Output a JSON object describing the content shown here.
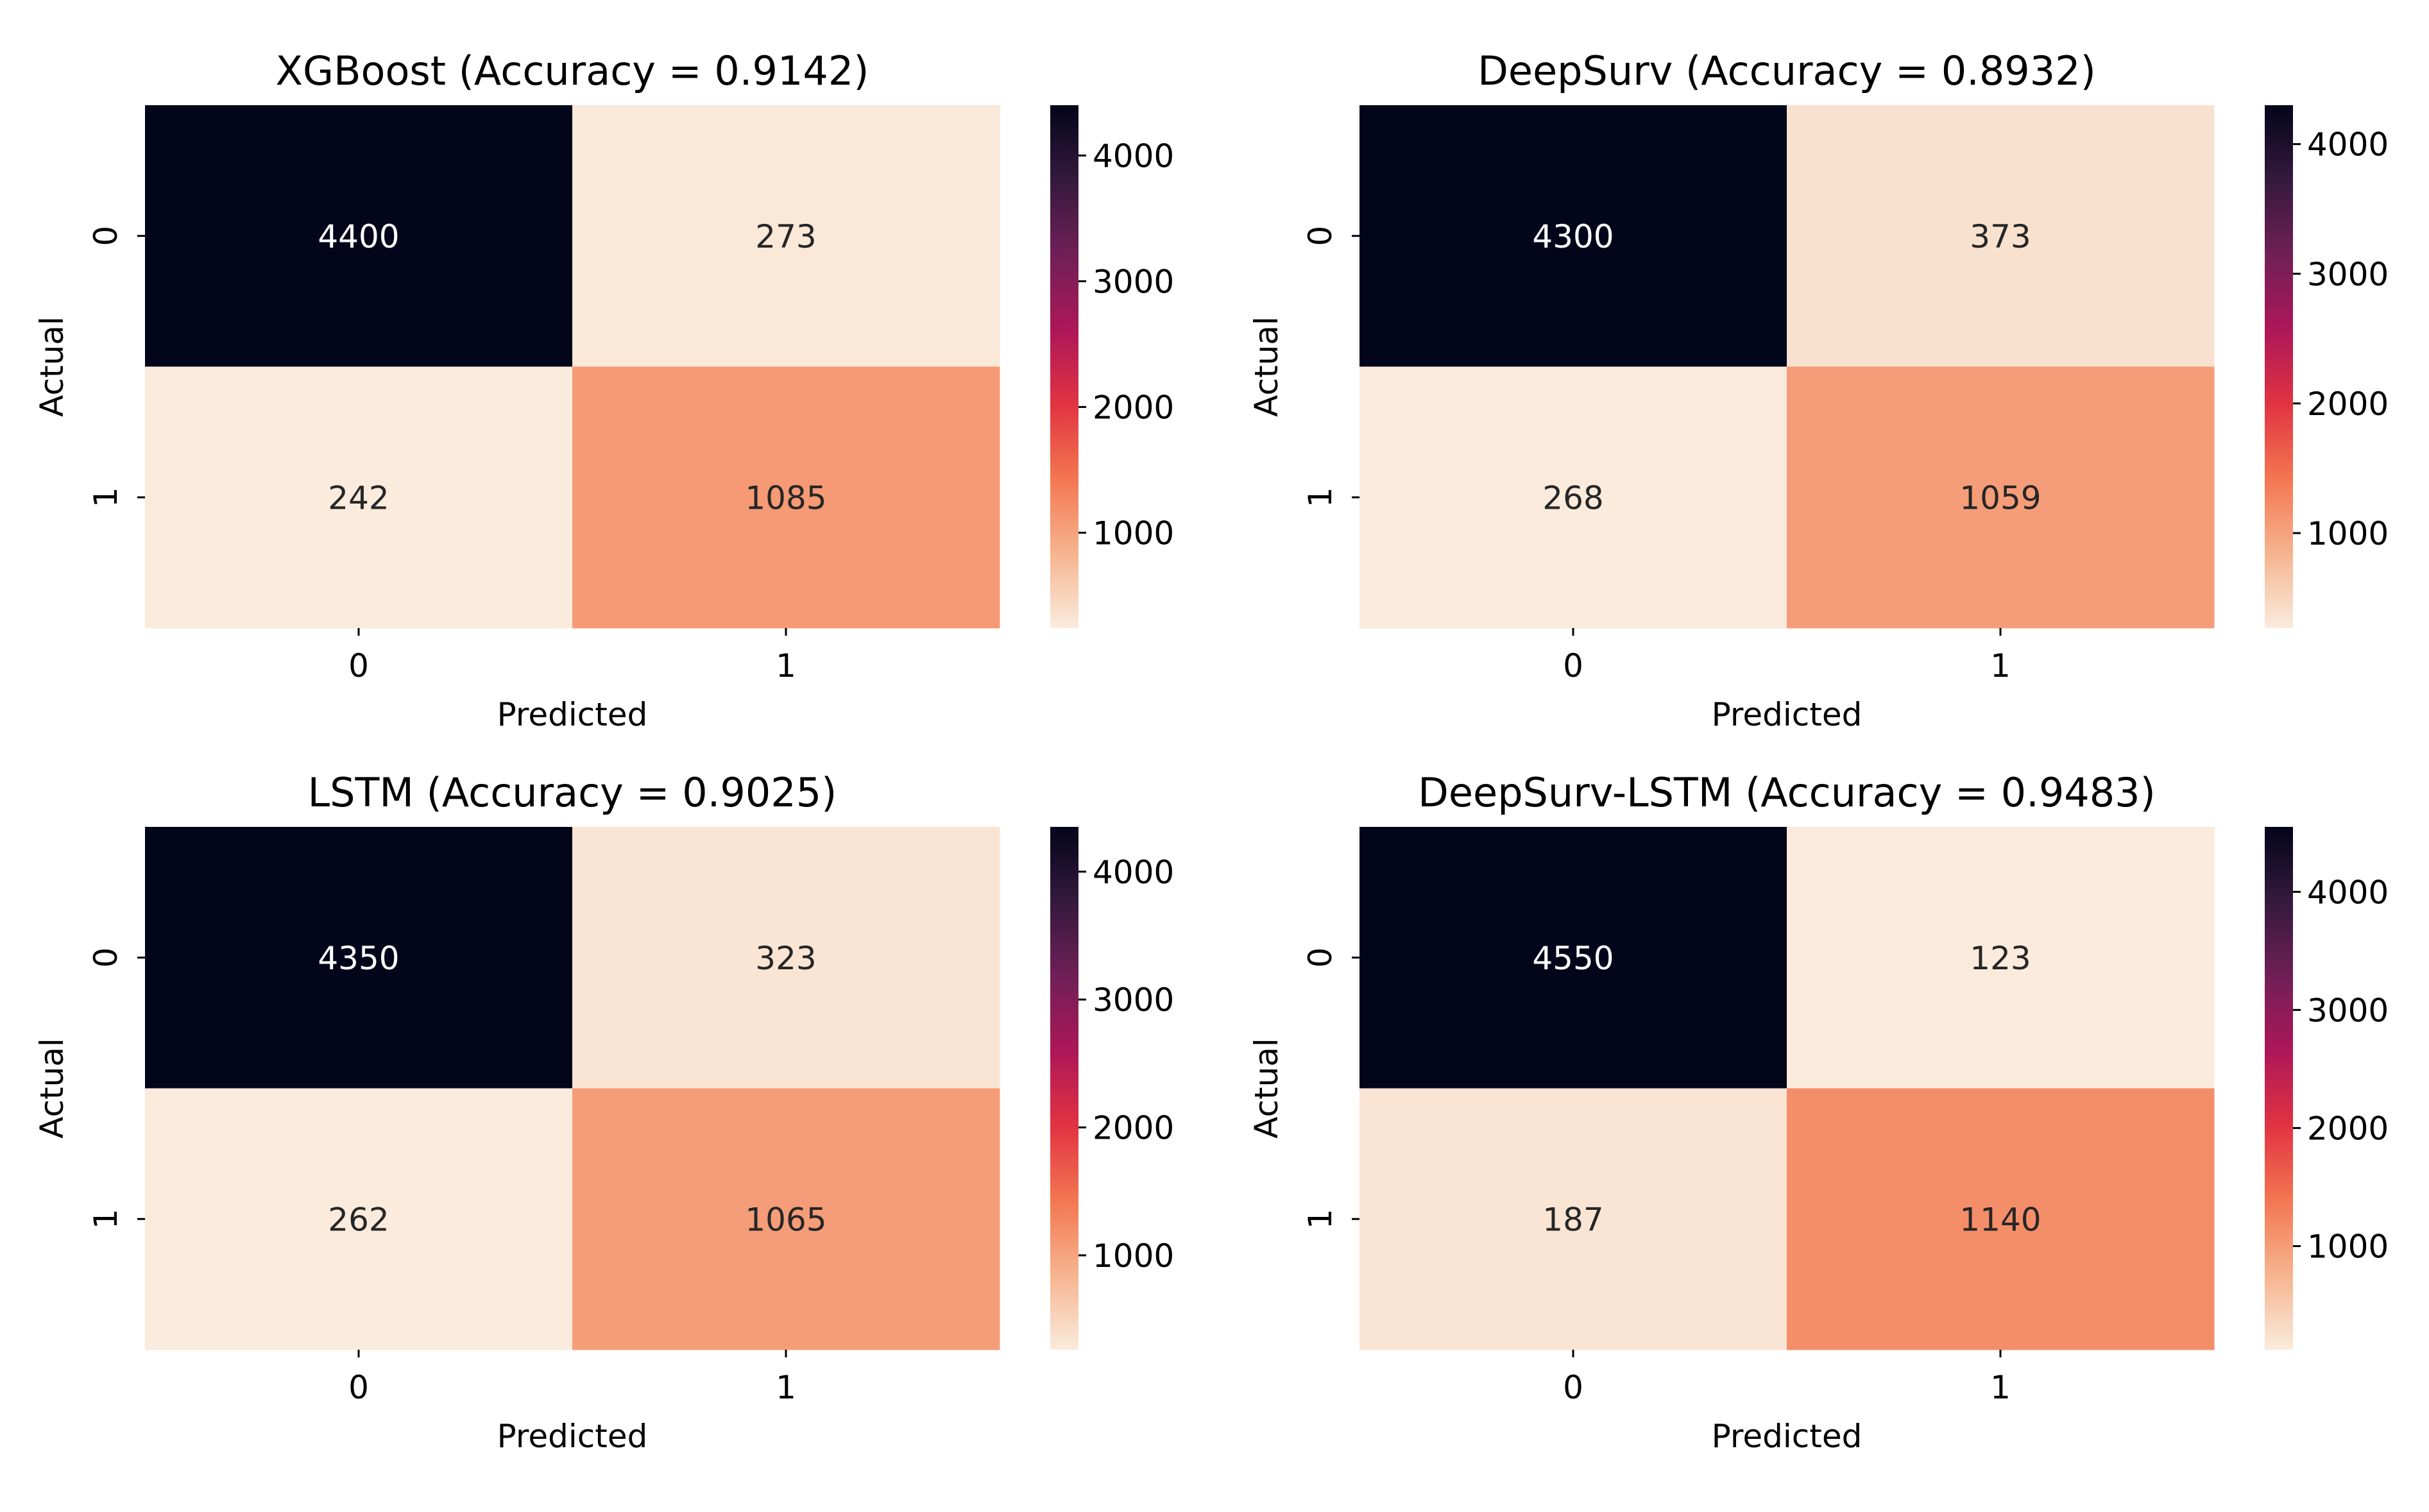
{
  "chart_data": [
    {
      "type": "heatmap",
      "title": "XGBoost (Accuracy = 0.9142)",
      "xlabel": "Predicted",
      "ylabel": "Actual",
      "x_tick_labels": [
        "0",
        "1"
      ],
      "y_tick_labels": [
        "0",
        "1"
      ],
      "matrix": [
        [
          4400,
          273
        ],
        [
          242,
          1085
        ]
      ],
      "colorbar": {
        "ticks": [
          "1000",
          "2000",
          "3000",
          "4000"
        ],
        "tick_values": [
          1000,
          2000,
          3000,
          4000
        ],
        "range": [
          242,
          4400
        ]
      }
    },
    {
      "type": "heatmap",
      "title": "DeepSurv (Accuracy = 0.8932)",
      "xlabel": "Predicted",
      "ylabel": "Actual",
      "x_tick_labels": [
        "0",
        "1"
      ],
      "y_tick_labels": [
        "0",
        "1"
      ],
      "matrix": [
        [
          4300,
          373
        ],
        [
          268,
          1059
        ]
      ],
      "colorbar": {
        "ticks": [
          "1000",
          "2000",
          "3000",
          "4000"
        ],
        "tick_values": [
          1000,
          2000,
          3000,
          4000
        ],
        "range": [
          268,
          4300
        ]
      }
    },
    {
      "type": "heatmap",
      "title": "LSTM (Accuracy = 0.9025)",
      "xlabel": "Predicted",
      "ylabel": "Actual",
      "x_tick_labels": [
        "0",
        "1"
      ],
      "y_tick_labels": [
        "0",
        "1"
      ],
      "matrix": [
        [
          4350,
          323
        ],
        [
          262,
          1065
        ]
      ],
      "colorbar": {
        "ticks": [
          "1000",
          "2000",
          "3000",
          "4000"
        ],
        "tick_values": [
          1000,
          2000,
          3000,
          4000
        ],
        "range": [
          262,
          4350
        ]
      }
    },
    {
      "type": "heatmap",
      "title": "DeepSurv-LSTM (Accuracy = 0.9483)",
      "xlabel": "Predicted",
      "ylabel": "Actual",
      "x_tick_labels": [
        "0",
        "1"
      ],
      "y_tick_labels": [
        "0",
        "1"
      ],
      "matrix": [
        [
          4550,
          123
        ],
        [
          187,
          1140
        ]
      ],
      "colorbar": {
        "ticks": [
          "1000",
          "2000",
          "3000",
          "4000"
        ],
        "tick_values": [
          1000,
          2000,
          3000,
          4000
        ],
        "range": [
          123,
          4550
        ]
      }
    }
  ],
  "colors": {
    "colormap": "rocket_r",
    "stops": [
      "#faebdd",
      "#f6b48f",
      "#f37651",
      "#e13342",
      "#ad1759",
      "#701f57",
      "#35193e",
      "#03051a"
    ],
    "dark_text": "#262626",
    "light_text": "#ffffff"
  }
}
